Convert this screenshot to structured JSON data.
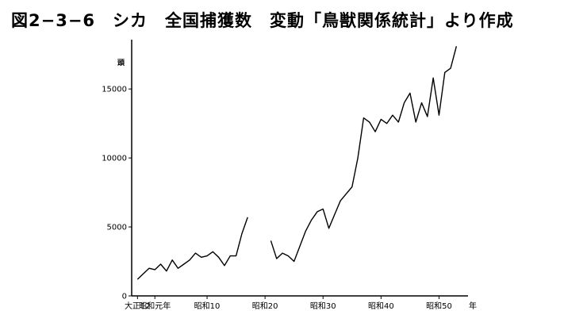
{
  "chart_data": {
    "type": "line",
    "title": "図2−3−6　シカ　全国捕獲数　変動「鳥獣関係統計」より作成",
    "ylabel": "頭",
    "xlabel": "年",
    "ylim": [
      0,
      18000
    ],
    "xlim": [
      1922,
      1980
    ],
    "yticks": [
      0,
      5000,
      10000,
      15000
    ],
    "ytick_labels": [
      "0",
      "5000",
      "10000",
      "15000"
    ],
    "xticks": [
      {
        "x": 1923,
        "label": "大正12"
      },
      {
        "x": 1926,
        "label": "昭和元年"
      },
      {
        "x": 1935,
        "label": "昭和10"
      },
      {
        "x": 1945,
        "label": "昭和20"
      },
      {
        "x": 1955,
        "label": "昭和30"
      },
      {
        "x": 1965,
        "label": "昭和40"
      },
      {
        "x": 1975,
        "label": "昭和50"
      }
    ],
    "series": [
      {
        "segments": [
          [
            [
              1923,
              1200
            ],
            [
              1924,
              1600
            ],
            [
              1925,
              2000
            ],
            [
              1926,
              1900
            ],
            [
              1927,
              2300
            ],
            [
              1928,
              1800
            ],
            [
              1929,
              2600
            ],
            [
              1930,
              2000
            ],
            [
              1931,
              2300
            ],
            [
              1932,
              2600
            ],
            [
              1933,
              3100
            ],
            [
              1934,
              2800
            ],
            [
              1935,
              2900
            ],
            [
              1936,
              3200
            ],
            [
              1937,
              2800
            ],
            [
              1938,
              2200
            ],
            [
              1939,
              2900
            ],
            [
              1940,
              2900
            ],
            [
              1941,
              4500
            ],
            [
              1942,
              5700
            ]
          ],
          [
            [
              1946,
              4000
            ],
            [
              1947,
              2700
            ],
            [
              1948,
              3100
            ],
            [
              1949,
              2900
            ],
            [
              1950,
              2500
            ],
            [
              1951,
              3600
            ],
            [
              1952,
              4700
            ],
            [
              1953,
              5500
            ],
            [
              1954,
              6100
            ],
            [
              1955,
              6300
            ],
            [
              1956,
              4900
            ],
            [
              1957,
              5900
            ],
            [
              1958,
              6900
            ],
            [
              1959,
              7400
            ],
            [
              1960,
              7900
            ],
            [
              1961,
              10000
            ],
            [
              1962,
              12900
            ],
            [
              1963,
              12600
            ],
            [
              1964,
              11900
            ],
            [
              1965,
              12800
            ],
            [
              1966,
              12500
            ],
            [
              1967,
              13100
            ],
            [
              1968,
              12600
            ],
            [
              1969,
              14000
            ],
            [
              1970,
              14700
            ],
            [
              1971,
              12600
            ],
            [
              1972,
              14000
            ],
            [
              1973,
              13000
            ],
            [
              1974,
              15800
            ],
            [
              1975,
              13100
            ],
            [
              1976,
              16200
            ],
            [
              1977,
              16500
            ],
            [
              1978,
              18100
            ]
          ]
        ]
      }
    ]
  }
}
